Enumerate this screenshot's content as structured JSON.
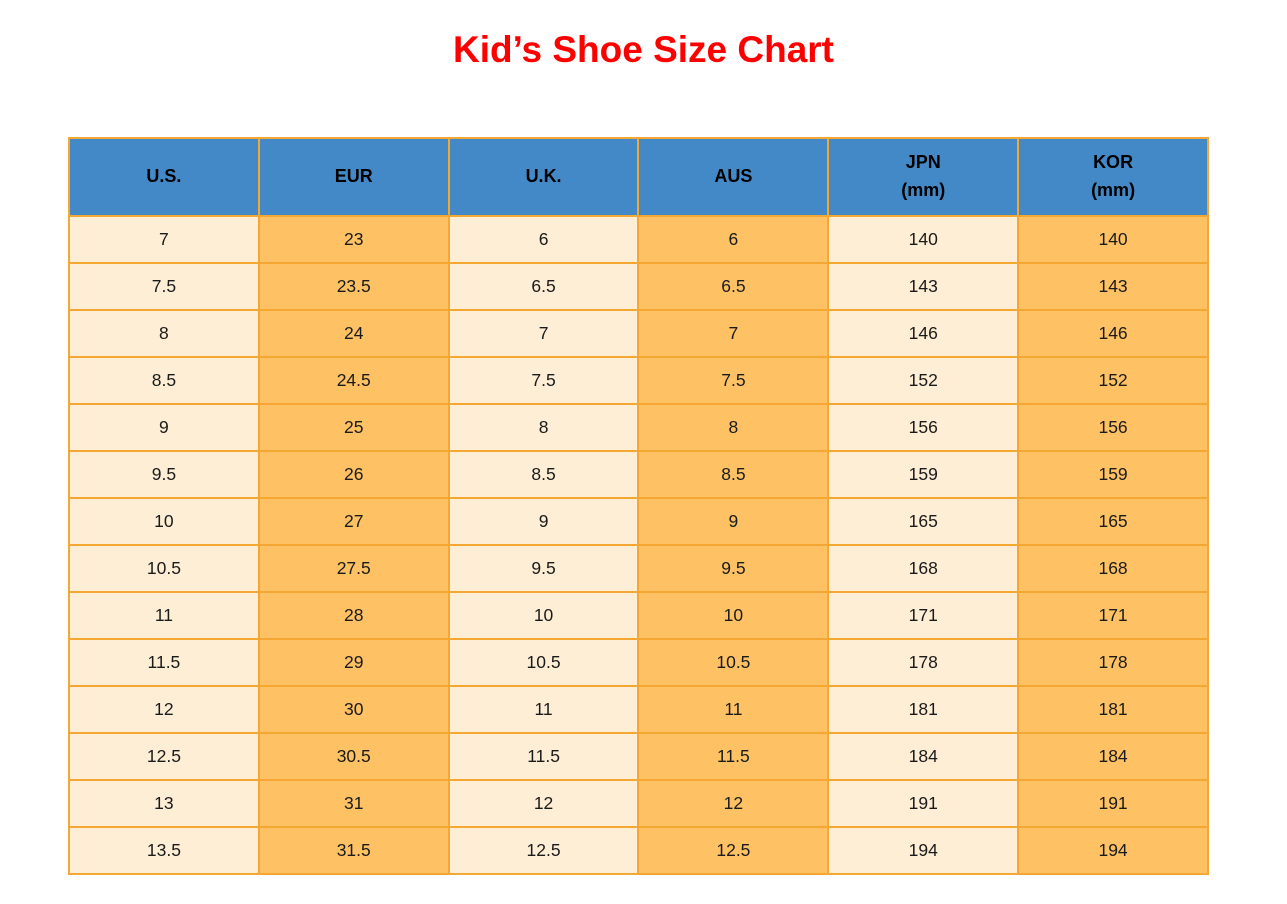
{
  "title": {
    "text": "Kid’s Shoe Size Chart"
  },
  "colors": {
    "title_text": "#FF0000",
    "header_bg": "#4389C8",
    "header_text": "#000000",
    "column_cream_bg": "#FDEED5",
    "column_orange_bg": "#FEC164",
    "grid_border": "#F5A733",
    "cell_text": "#1A1A1A",
    "page_bg": "#FFFFFF"
  },
  "chart_data": {
    "type": "table",
    "title": "Kid’s Shoe Size Chart",
    "columns": [
      {
        "label": "U.S.",
        "sub": ""
      },
      {
        "label": "EUR",
        "sub": ""
      },
      {
        "label": "U.K.",
        "sub": ""
      },
      {
        "label": "AUS",
        "sub": ""
      },
      {
        "label": "JPN",
        "sub": "(mm)"
      },
      {
        "label": "KOR",
        "sub": "(mm)"
      }
    ],
    "rows": [
      [
        "7",
        "23",
        "6",
        "6",
        "140",
        "140"
      ],
      [
        "7.5",
        "23.5",
        "6.5",
        "6.5",
        "143",
        "143"
      ],
      [
        "8",
        "24",
        "7",
        "7",
        "146",
        "146"
      ],
      [
        "8.5",
        "24.5",
        "7.5",
        "7.5",
        "152",
        "152"
      ],
      [
        "9",
        "25",
        "8",
        "8",
        "156",
        "156"
      ],
      [
        "9.5",
        "26",
        "8.5",
        "8.5",
        "159",
        "159"
      ],
      [
        "10",
        "27",
        "9",
        "9",
        "165",
        "165"
      ],
      [
        "10.5",
        "27.5",
        "9.5",
        "9.5",
        "168",
        "168"
      ],
      [
        "11",
        "28",
        "10",
        "10",
        "171",
        "171"
      ],
      [
        "11.5",
        "29",
        "10.5",
        "10.5",
        "178",
        "178"
      ],
      [
        "12",
        "30",
        "11",
        "11",
        "181",
        "181"
      ],
      [
        "12.5",
        "30.5",
        "11.5",
        "11.5",
        "184",
        "184"
      ],
      [
        "13",
        "31",
        "12",
        "12",
        "191",
        "191"
      ],
      [
        "13.5",
        "31.5",
        "12.5",
        "12.5",
        "194",
        "194"
      ]
    ],
    "layout": {
      "column_fill_pattern": [
        "cream",
        "orange",
        "cream",
        "orange",
        "cream",
        "orange"
      ],
      "grid": "on"
    }
  }
}
